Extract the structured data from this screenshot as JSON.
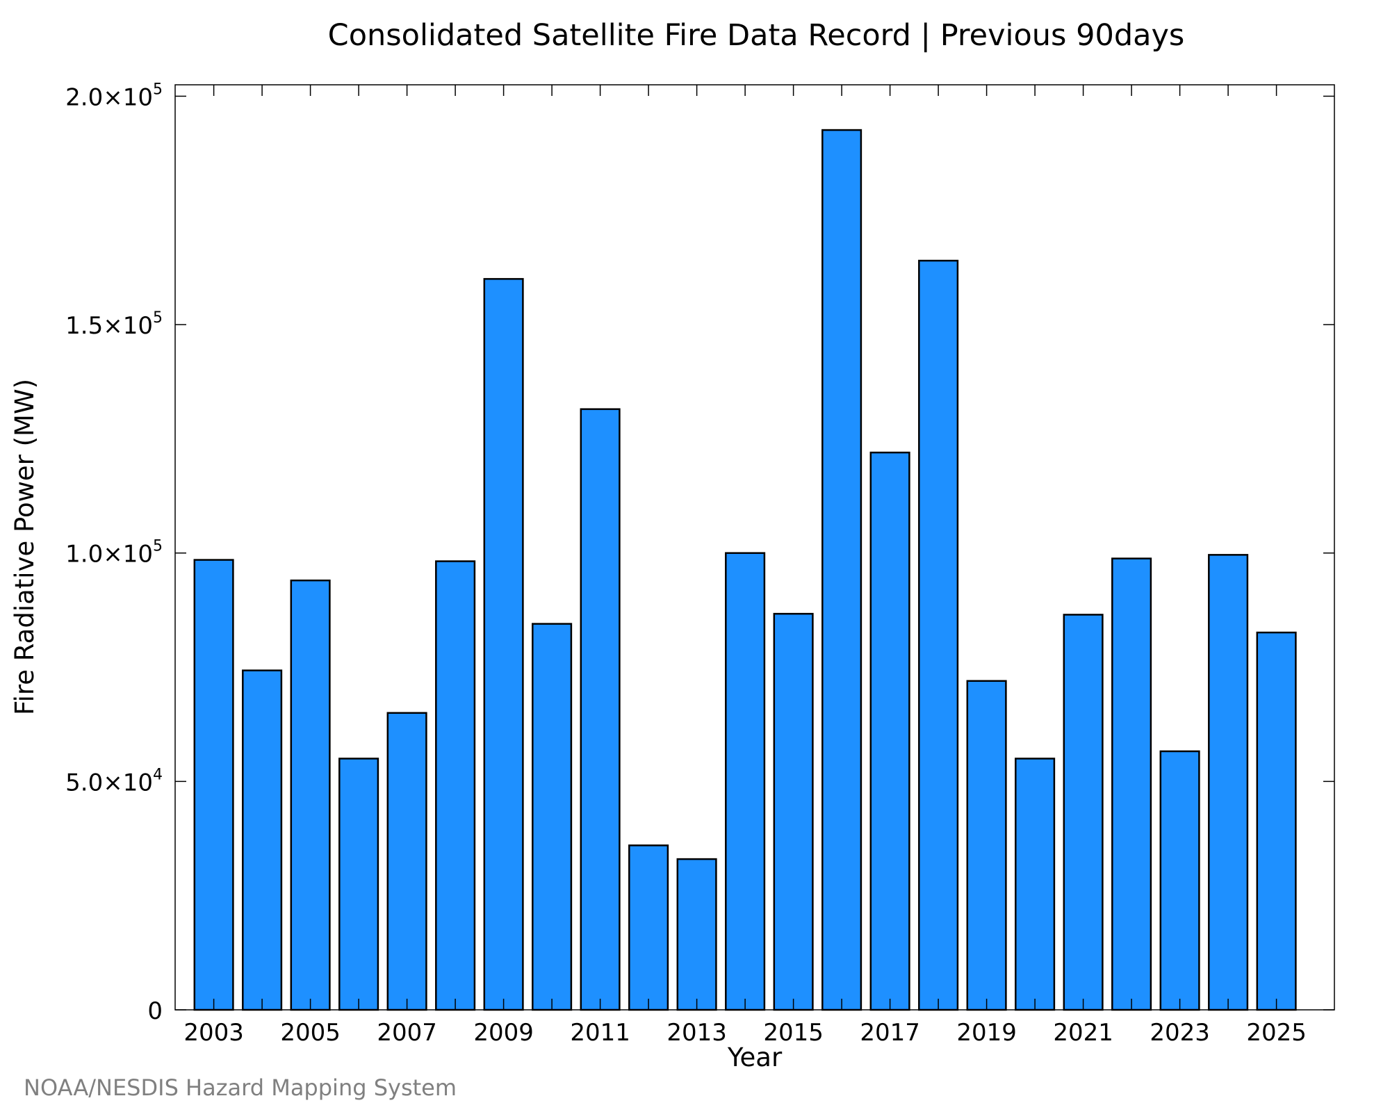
{
  "chart_data": {
    "type": "bar",
    "title": "Consolidated Satellite Fire Data Record | Previous 90days",
    "xlabel": "Year",
    "ylabel": "Fire Radiative Power (MW)",
    "categories": [
      "2003",
      "2004",
      "2005",
      "2006",
      "2007",
      "2008",
      "2009",
      "2010",
      "2011",
      "2012",
      "2013",
      "2014",
      "2015",
      "2016",
      "2017",
      "2018",
      "2019",
      "2020",
      "2021",
      "2022",
      "2023",
      "2024",
      "2025"
    ],
    "values": [
      98500,
      74300,
      94000,
      55000,
      65000,
      98200,
      160000,
      84500,
      131500,
      36000,
      33000,
      100000,
      86700,
      192600,
      122000,
      164000,
      72000,
      55000,
      86500,
      98800,
      56600,
      99600,
      82600
    ],
    "ylim": [
      0,
      202500
    ],
    "xlim": [
      2002.2,
      2026.2
    ],
    "x_tick_labels": [
      "2003",
      "2005",
      "2007",
      "2009",
      "2011",
      "2013",
      "2015",
      "2017",
      "2019",
      "2021",
      "2023",
      "2025"
    ],
    "y_ticks": [
      {
        "value": 0,
        "mantissa": "0",
        "exp": ""
      },
      {
        "value": 50000,
        "mantissa": "5.0×10",
        "exp": "4"
      },
      {
        "value": 100000,
        "mantissa": "1.0×10",
        "exp": "5"
      },
      {
        "value": 150000,
        "mantissa": "1.5×10",
        "exp": "5"
      },
      {
        "value": 200000,
        "mantissa": "2.0×10",
        "exp": "5"
      }
    ],
    "grid": false,
    "bar_color": "#1e90ff",
    "edge_color": "#000000"
  },
  "credit": "NOAA/NESDIS Hazard Mapping System"
}
